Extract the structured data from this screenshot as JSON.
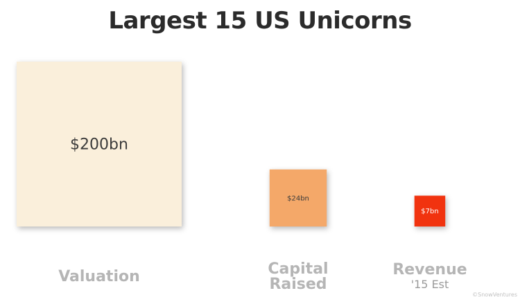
{
  "chart_data": {
    "type": "bar",
    "title": "Largest 15 US Unicorns",
    "categories": [
      "Valuation",
      "Capital Raised",
      "Revenue"
    ],
    "category_sub": [
      "",
      "",
      "'15 Est"
    ],
    "values": [
      200,
      24,
      7
    ],
    "value_labels": [
      "$200bn",
      "$24bn",
      "$7bn"
    ],
    "unit": "bn USD",
    "colors": [
      "#FAEFDB",
      "#F4A869",
      "#F1330F"
    ],
    "encoding": "square area proportional to value",
    "grid": false,
    "legend": "none"
  },
  "footer": {
    "credit": "©SnowVentures"
  }
}
